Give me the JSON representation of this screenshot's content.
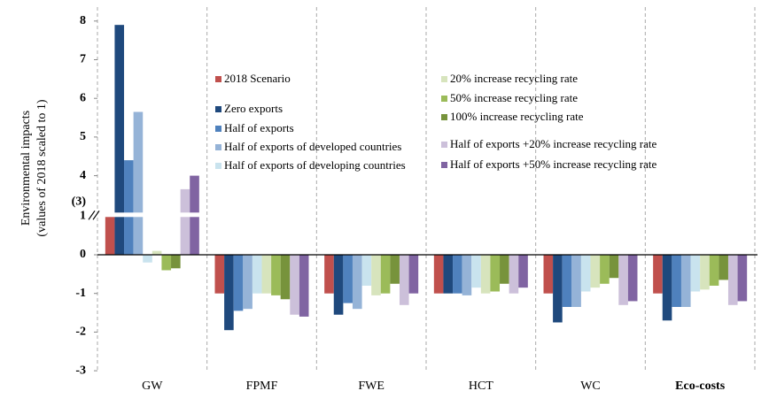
{
  "chart_data": {
    "type": "bar",
    "ylabel_lines": [
      "Environmental impacts",
      "(values of 2018 scaled to 1)"
    ],
    "categories": [
      "GW",
      "FPMF",
      "FWE",
      "HCT",
      "WC",
      "Eco-costs"
    ],
    "category_bold": [
      false,
      false,
      false,
      false,
      false,
      true
    ],
    "ylim": [
      -3,
      8
    ],
    "axis_break": [
      1,
      3
    ],
    "yticks": [
      -3,
      -2,
      -1,
      0,
      1,
      {
        "value": 3,
        "label": "(3)"
      },
      4,
      5,
      6,
      7,
      8
    ],
    "series": [
      {
        "name": "2018 Scenario",
        "color": "#c0504d",
        "values": [
          1,
          -1,
          -1,
          -1,
          -1,
          -1
        ]
      },
      {
        "name": "Zero exports",
        "color": "#1f497d",
        "values": [
          7.9,
          -1.95,
          -1.55,
          -1.0,
          -1.75,
          -1.7
        ]
      },
      {
        "name": "Half of exports",
        "color": "#4f81bd",
        "values": [
          4.4,
          -1.45,
          -1.25,
          -1.0,
          -1.35,
          -1.35
        ]
      },
      {
        "name": "Half of exports of developed countries",
        "color": "#95b3d7",
        "values": [
          5.65,
          -1.4,
          -1.4,
          -1.05,
          -1.35,
          -1.35
        ]
      },
      {
        "name": "Half of exports of developing countries",
        "color": "#c9e3ee",
        "values": [
          -0.2,
          -1.0,
          -0.8,
          -0.85,
          -0.95,
          -0.95
        ]
      },
      {
        "name": "20% increase recycling rate",
        "color": "#d7e4bd",
        "values": [
          0.1,
          -1.0,
          -1.05,
          -1.0,
          -0.85,
          -0.9
        ]
      },
      {
        "name": "50% increase recycling rate",
        "color": "#9bbb59",
        "values": [
          -0.4,
          -1.05,
          -1.0,
          -0.95,
          -0.75,
          -0.8
        ]
      },
      {
        "name": "100% increase recycling rate",
        "color": "#77933c",
        "values": [
          -0.35,
          -1.15,
          -0.75,
          -0.75,
          -0.6,
          -0.65
        ]
      },
      {
        "name": "Half of exports +20% increase recycling rate",
        "color": "#ccc0da",
        "values": [
          3.65,
          -1.55,
          -1.3,
          -1.0,
          -1.3,
          -1.3
        ]
      },
      {
        "name": "Half of exports +50% increase recycling rate",
        "color": "#8064a2",
        "values": [
          4.0,
          -1.6,
          -1.0,
          -0.85,
          -1.2,
          -1.2
        ]
      }
    ]
  }
}
